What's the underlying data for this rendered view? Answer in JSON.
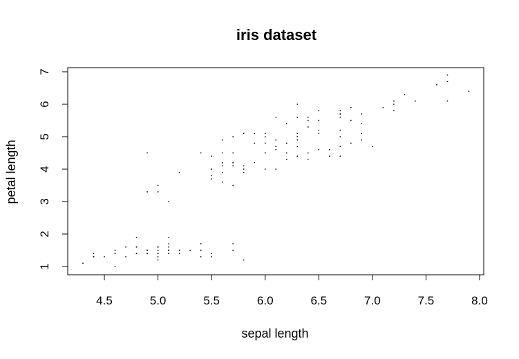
{
  "chart_data": {
    "type": "scatter",
    "title": "iris dataset",
    "xlabel": "sepal length",
    "ylabel": "petal length",
    "xlim": [
      4.3,
      7.9
    ],
    "ylim": [
      1,
      6.9
    ],
    "xticks": [
      "4.5",
      "5.0",
      "5.5",
      "6.0",
      "6.5",
      "7.0",
      "7.5",
      "8.0"
    ],
    "yticks": [
      "1",
      "2",
      "3",
      "4",
      "5",
      "6",
      "7"
    ],
    "grid": false,
    "legend": "none",
    "point_color": "#000000",
    "points": [
      [
        5.1,
        1.4
      ],
      [
        4.9,
        1.4
      ],
      [
        4.7,
        1.3
      ],
      [
        4.6,
        1.5
      ],
      [
        5.0,
        1.4
      ],
      [
        5.4,
        1.7
      ],
      [
        4.6,
        1.4
      ],
      [
        5.0,
        1.5
      ],
      [
        4.4,
        1.4
      ],
      [
        4.9,
        1.5
      ],
      [
        5.4,
        1.5
      ],
      [
        4.8,
        1.6
      ],
      [
        4.8,
        1.4
      ],
      [
        4.3,
        1.1
      ],
      [
        5.8,
        1.2
      ],
      [
        5.7,
        1.5
      ],
      [
        5.4,
        1.3
      ],
      [
        5.1,
        1.4
      ],
      [
        5.7,
        1.7
      ],
      [
        5.1,
        1.5
      ],
      [
        5.4,
        1.7
      ],
      [
        5.1,
        1.5
      ],
      [
        4.6,
        1.0
      ],
      [
        5.1,
        1.7
      ],
      [
        4.8,
        1.9
      ],
      [
        5.0,
        1.6
      ],
      [
        5.0,
        1.6
      ],
      [
        5.2,
        1.5
      ],
      [
        5.2,
        1.4
      ],
      [
        4.7,
        1.6
      ],
      [
        4.8,
        1.6
      ],
      [
        5.4,
        1.5
      ],
      [
        5.2,
        1.5
      ],
      [
        5.5,
        1.4
      ],
      [
        4.9,
        1.5
      ],
      [
        5.0,
        1.2
      ],
      [
        5.5,
        1.3
      ],
      [
        4.9,
        1.4
      ],
      [
        4.4,
        1.3
      ],
      [
        5.1,
        1.5
      ],
      [
        5.0,
        1.3
      ],
      [
        4.5,
        1.3
      ],
      [
        4.4,
        1.3
      ],
      [
        5.0,
        1.6
      ],
      [
        5.1,
        1.9
      ],
      [
        4.8,
        1.4
      ],
      [
        5.1,
        1.6
      ],
      [
        4.6,
        1.4
      ],
      [
        5.3,
        1.5
      ],
      [
        5.0,
        1.4
      ],
      [
        7.0,
        4.7
      ],
      [
        6.4,
        4.5
      ],
      [
        6.9,
        4.9
      ],
      [
        5.5,
        4.0
      ],
      [
        6.5,
        4.6
      ],
      [
        5.7,
        4.5
      ],
      [
        6.3,
        4.7
      ],
      [
        4.9,
        3.3
      ],
      [
        6.6,
        4.6
      ],
      [
        5.2,
        3.9
      ],
      [
        5.0,
        3.5
      ],
      [
        5.9,
        4.2
      ],
      [
        6.0,
        4.0
      ],
      [
        6.1,
        4.7
      ],
      [
        5.6,
        3.6
      ],
      [
        6.7,
        4.4
      ],
      [
        5.6,
        4.5
      ],
      [
        5.8,
        4.1
      ],
      [
        6.2,
        4.5
      ],
      [
        5.6,
        3.9
      ],
      [
        5.9,
        4.8
      ],
      [
        6.1,
        4.0
      ],
      [
        6.3,
        4.9
      ],
      [
        6.1,
        4.7
      ],
      [
        6.4,
        4.3
      ],
      [
        6.6,
        4.4
      ],
      [
        6.8,
        4.8
      ],
      [
        6.7,
        5.0
      ],
      [
        6.0,
        4.5
      ],
      [
        5.7,
        3.5
      ],
      [
        5.5,
        3.8
      ],
      [
        5.5,
        3.7
      ],
      [
        5.8,
        3.9
      ],
      [
        6.0,
        5.1
      ],
      [
        5.4,
        4.5
      ],
      [
        6.0,
        4.5
      ],
      [
        6.7,
        4.7
      ],
      [
        6.3,
        4.4
      ],
      [
        5.6,
        4.1
      ],
      [
        5.5,
        4.0
      ],
      [
        5.5,
        4.4
      ],
      [
        6.1,
        4.6
      ],
      [
        5.8,
        4.0
      ],
      [
        5.0,
        3.3
      ],
      [
        5.6,
        4.2
      ],
      [
        5.7,
        4.2
      ],
      [
        5.7,
        4.2
      ],
      [
        6.2,
        4.3
      ],
      [
        5.1,
        3.0
      ],
      [
        5.7,
        4.1
      ],
      [
        6.3,
        6.0
      ],
      [
        5.8,
        5.1
      ],
      [
        7.1,
        5.9
      ],
      [
        6.3,
        5.6
      ],
      [
        6.5,
        5.8
      ],
      [
        7.6,
        6.6
      ],
      [
        4.9,
        4.5
      ],
      [
        7.3,
        6.3
      ],
      [
        6.7,
        5.8
      ],
      [
        7.2,
        6.1
      ],
      [
        6.5,
        5.1
      ],
      [
        6.4,
        5.3
      ],
      [
        6.8,
        5.5
      ],
      [
        5.7,
        5.0
      ],
      [
        5.8,
        5.1
      ],
      [
        6.4,
        5.3
      ],
      [
        6.5,
        5.5
      ],
      [
        7.7,
        6.7
      ],
      [
        7.7,
        6.9
      ],
      [
        6.0,
        5.0
      ],
      [
        6.9,
        5.7
      ],
      [
        5.6,
        4.9
      ],
      [
        7.7,
        6.7
      ],
      [
        6.3,
        4.9
      ],
      [
        6.7,
        5.7
      ],
      [
        7.2,
        6.0
      ],
      [
        6.2,
        4.8
      ],
      [
        6.1,
        4.9
      ],
      [
        6.4,
        5.6
      ],
      [
        7.2,
        5.8
      ],
      [
        7.4,
        6.1
      ],
      [
        7.9,
        6.4
      ],
      [
        6.4,
        5.6
      ],
      [
        6.3,
        5.1
      ],
      [
        6.1,
        5.6
      ],
      [
        7.7,
        6.1
      ],
      [
        6.3,
        5.6
      ],
      [
        6.4,
        5.5
      ],
      [
        6.0,
        4.8
      ],
      [
        6.9,
        5.4
      ],
      [
        6.7,
        5.6
      ],
      [
        6.9,
        5.1
      ],
      [
        5.8,
        5.1
      ],
      [
        6.8,
        5.9
      ],
      [
        6.7,
        5.7
      ],
      [
        6.7,
        5.2
      ],
      [
        6.3,
        5.0
      ],
      [
        6.5,
        5.2
      ],
      [
        6.2,
        5.4
      ],
      [
        5.9,
        5.1
      ]
    ]
  }
}
